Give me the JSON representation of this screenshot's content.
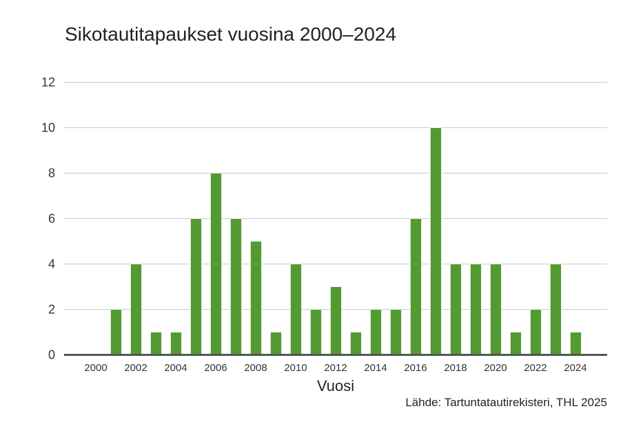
{
  "chart_data": {
    "type": "bar",
    "title": "Sikotautitapaukset vuosina 2000–2024",
    "xlabel": "Vuosi",
    "ylabel": "",
    "source": "Lähde: Tartuntatautirekisteri, THL 2025",
    "categories": [
      "2000",
      "2001",
      "2002",
      "2003",
      "2004",
      "2005",
      "2006",
      "2007",
      "2008",
      "2009",
      "2010",
      "2011",
      "2012",
      "2013",
      "2014",
      "2015",
      "2016",
      "2017",
      "2018",
      "2019",
      "2020",
      "2021",
      "2022",
      "2023",
      "2024"
    ],
    "values": [
      0,
      2,
      4,
      1,
      1,
      6,
      8,
      6,
      5,
      1,
      4,
      2,
      3,
      1,
      2,
      2,
      6,
      10,
      4,
      4,
      4,
      1,
      2,
      4,
      1
    ],
    "ylim": [
      0,
      12
    ],
    "yticks": [
      "0",
      "2",
      "4",
      "6",
      "8",
      "10",
      "12"
    ],
    "xticks": [
      "2000",
      "2002",
      "2004",
      "2006",
      "2008",
      "2010",
      "2012",
      "2014",
      "2016",
      "2018",
      "2020",
      "2022",
      "2024"
    ],
    "grid": true,
    "legend": null,
    "bar_color": "#529b31",
    "grid_color": "#c8c8c8",
    "axis_color": "#555555"
  }
}
